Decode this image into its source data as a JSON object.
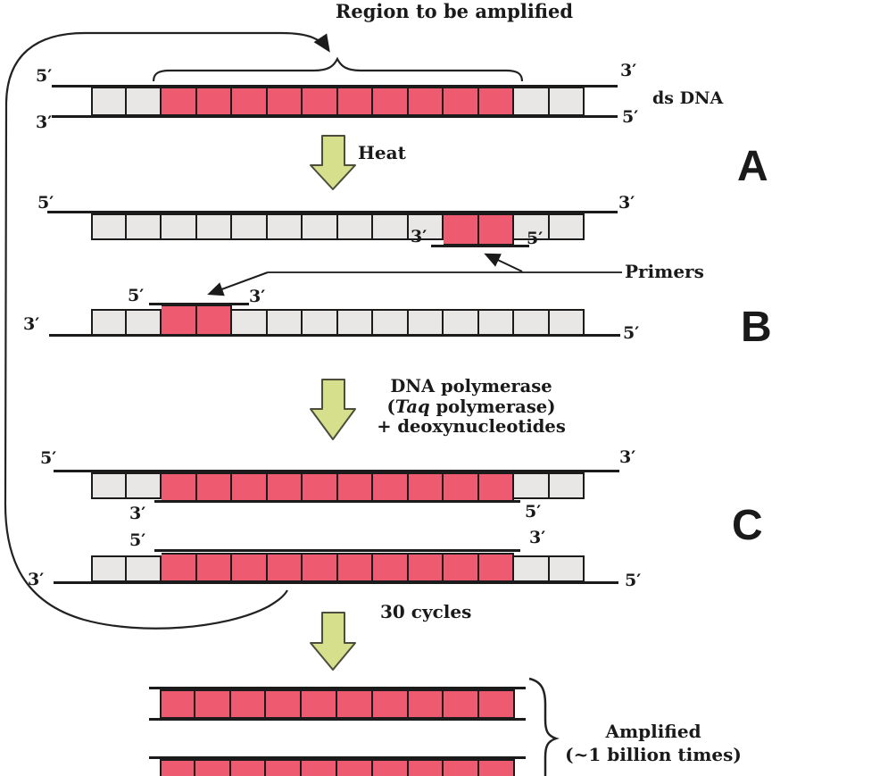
{
  "title": "Region to be amplified",
  "labels": {
    "five_prime": "5′",
    "three_prime": "3′",
    "ds_dna": "ds DNA",
    "primers": "Primers",
    "heat": "Heat",
    "cycles": "30 cycles",
    "amplified_line1": "Amplified",
    "amplified_line2": "(~1 billion times)",
    "section_a": "A",
    "section_b": "B",
    "section_c": "C"
  },
  "polymerase_step": {
    "line1": "DNA polymerase",
    "line2_pre": "(",
    "line2_italic": "Taq",
    "line2_post": " polymerase)",
    "line3": "+ deoxynucleotides"
  },
  "colors": {
    "pink": "#ee5a70",
    "gray": "#e8e7e5",
    "green": "#d6e08c",
    "stroke": "#1b1b1b",
    "text": "#1a1a1a"
  },
  "strands": {
    "ds": {
      "cells": [
        "gray",
        "gray",
        "pink",
        "pink",
        "pink",
        "pink",
        "pink",
        "pink",
        "pink",
        "pink",
        "pink",
        "pink",
        "gray",
        "gray"
      ]
    },
    "denatured_top": {
      "cells": [
        "gray",
        "gray",
        "gray",
        "gray",
        "gray",
        "gray",
        "gray",
        "gray",
        "gray",
        "gray",
        "primer",
        "primer",
        "gray",
        "gray"
      ]
    },
    "denatured_bottom": {
      "cells": [
        "gray",
        "gray",
        "primer",
        "primer",
        "gray",
        "gray",
        "gray",
        "gray",
        "gray",
        "gray",
        "gray",
        "gray",
        "gray",
        "gray"
      ]
    },
    "c_top": {
      "cells": [
        "gray",
        "gray",
        "pink",
        "pink",
        "pink",
        "pink",
        "pink",
        "pink",
        "pink",
        "pink",
        "pink",
        "pink",
        "gray",
        "gray"
      ]
    },
    "c_bottom": {
      "cells": [
        "gray",
        "gray",
        "pink",
        "pink",
        "pink",
        "pink",
        "pink",
        "pink",
        "pink",
        "pink",
        "pink",
        "pink",
        "gray",
        "gray"
      ]
    },
    "amplified_1": {
      "cells": [
        "pink",
        "pink",
        "pink",
        "pink",
        "pink",
        "pink",
        "pink",
        "pink",
        "pink",
        "pink"
      ]
    },
    "amplified_2": {
      "cells": [
        "pink",
        "pink",
        "pink",
        "pink",
        "pink",
        "pink",
        "pink",
        "pink",
        "pink",
        "pink"
      ]
    }
  }
}
